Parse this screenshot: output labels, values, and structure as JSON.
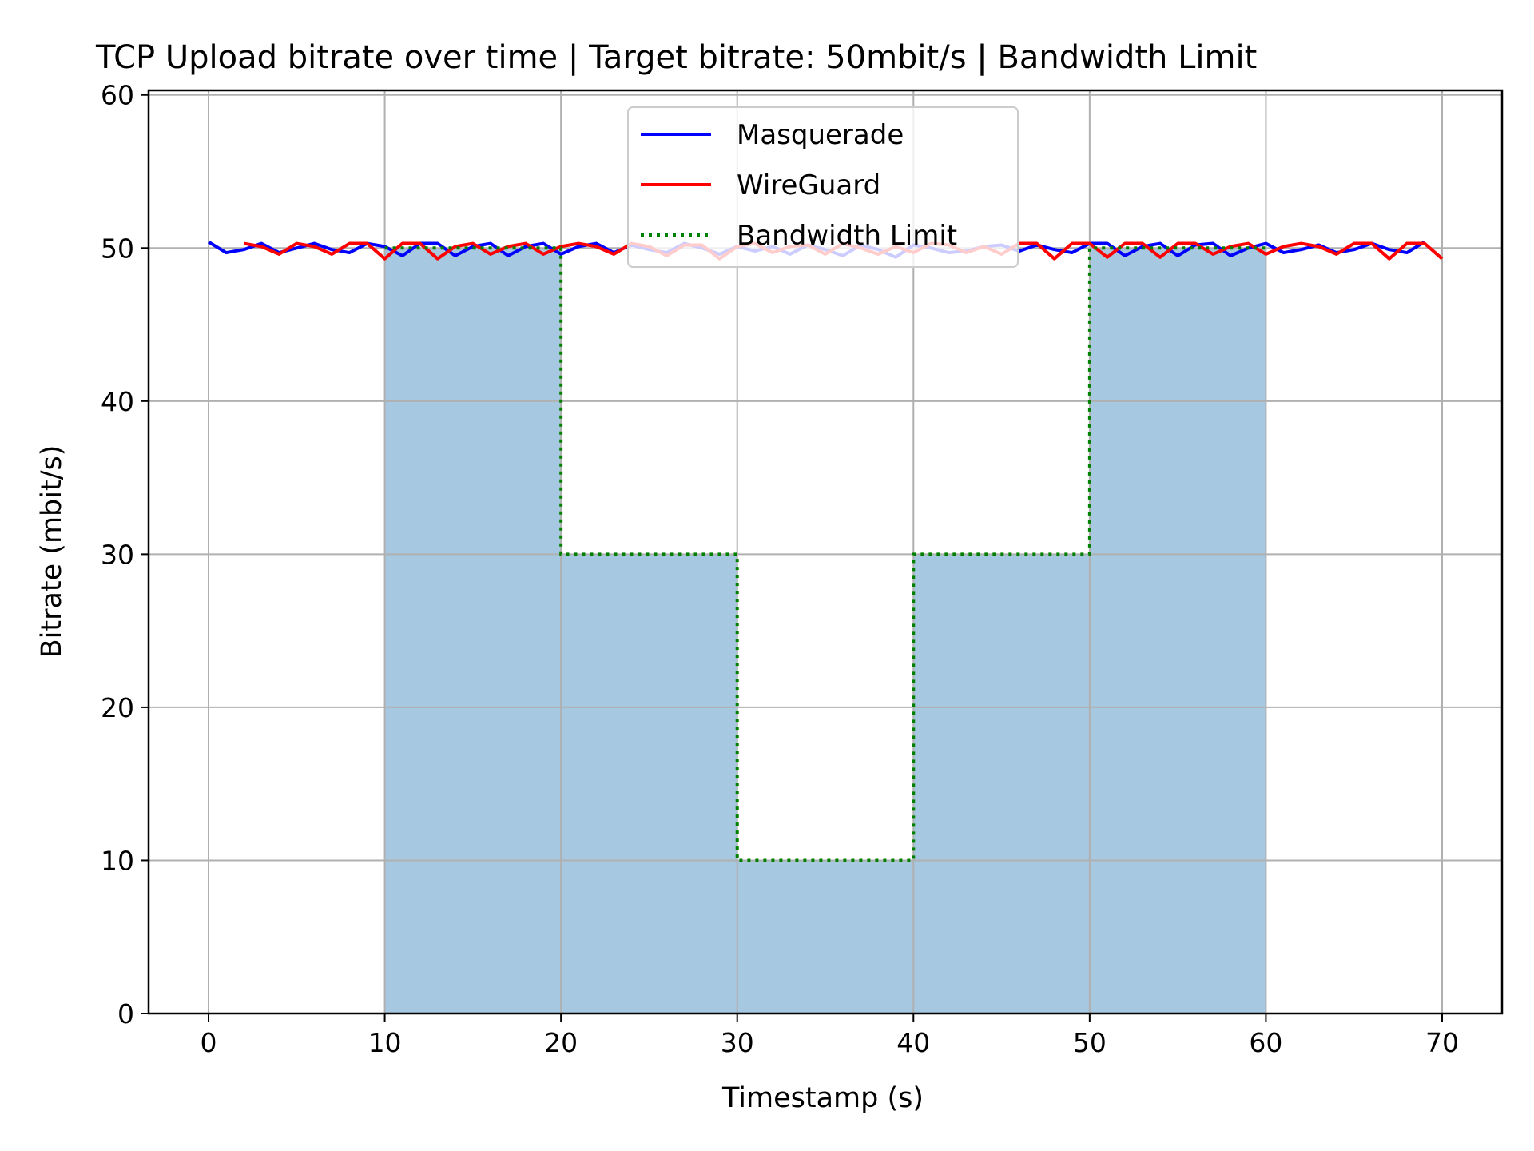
{
  "chart_data": {
    "type": "line",
    "title": "TCP Upload bitrate over time | Target bitrate: 50mbit/s | Bandwidth Limit",
    "xlabel": "Timestamp (s)",
    "ylabel": "Bitrate (mbit/s)",
    "xlim": [
      -3.4,
      73.4
    ],
    "ylim": [
      0,
      60.3
    ],
    "xticks": [
      0,
      10,
      20,
      30,
      40,
      50,
      60,
      70
    ],
    "yticks": [
      0,
      10,
      20,
      30,
      40,
      50,
      60
    ],
    "grid": true,
    "legend_position": "upper-center",
    "legend": [
      {
        "label": "Masquerade",
        "color": "#0000ff",
        "style": "solid"
      },
      {
        "label": "WireGuard",
        "color": "#ff0000",
        "style": "solid"
      },
      {
        "label": "Bandwidth Limit",
        "color": "#008000",
        "style": "dotted"
      }
    ],
    "series": [
      {
        "name": "Masquerade",
        "color": "#0000ff",
        "style": "solid",
        "x": [
          0,
          1,
          2,
          3,
          4,
          5,
          6,
          7,
          8,
          9,
          10,
          11,
          12,
          13,
          14,
          15,
          16,
          17,
          18,
          19,
          20,
          21,
          22,
          23,
          24,
          25,
          26,
          27,
          28,
          29,
          30,
          31,
          32,
          33,
          34,
          35,
          36,
          37,
          38,
          39,
          40,
          41,
          42,
          43,
          44,
          45,
          46,
          47,
          48,
          49,
          50,
          51,
          52,
          53,
          54,
          55,
          56,
          57,
          58,
          59,
          60,
          61,
          62,
          63,
          64,
          65,
          66,
          67,
          68,
          69
        ],
        "y": [
          50.4,
          49.7,
          49.9,
          50.3,
          49.7,
          50.0,
          50.3,
          49.9,
          49.7,
          50.3,
          50.1,
          49.5,
          50.3,
          50.3,
          49.5,
          50.1,
          50.3,
          49.5,
          50.1,
          50.3,
          49.6,
          50.1,
          50.3,
          49.7,
          50.2,
          49.9,
          49.7,
          50.3,
          50.0,
          49.6,
          50.1,
          49.8,
          50.1,
          49.6,
          50.2,
          49.9,
          49.5,
          50.2,
          49.9,
          49.4,
          50.2,
          50.0,
          49.7,
          49.8,
          50.1,
          50.2,
          49.8,
          50.2,
          49.9,
          49.7,
          50.3,
          50.3,
          49.5,
          50.1,
          50.3,
          49.5,
          50.2,
          50.3,
          49.5,
          50.0,
          50.3,
          49.7,
          49.9,
          50.2,
          49.7,
          49.9,
          50.3,
          49.9,
          49.7,
          50.4
        ]
      },
      {
        "name": "WireGuard",
        "color": "#ff0000",
        "style": "solid",
        "x": [
          2,
          3,
          4,
          5,
          6,
          7,
          8,
          9,
          10,
          11,
          12,
          13,
          14,
          15,
          16,
          17,
          18,
          19,
          20,
          21,
          22,
          23,
          24,
          25,
          26,
          27,
          28,
          29,
          30,
          31,
          32,
          33,
          34,
          35,
          36,
          37,
          38,
          39,
          40,
          41,
          42,
          43,
          44,
          45,
          46,
          47,
          48,
          49,
          50,
          51,
          52,
          53,
          54,
          55,
          56,
          57,
          58,
          59,
          60,
          61,
          62,
          63,
          64,
          65,
          66,
          67,
          68,
          69,
          70
        ],
        "y": [
          50.3,
          50.1,
          49.6,
          50.3,
          50.1,
          49.6,
          50.3,
          50.3,
          49.3,
          50.3,
          50.3,
          49.3,
          50.1,
          50.3,
          49.6,
          50.1,
          50.3,
          49.6,
          50.1,
          50.3,
          50.1,
          49.6,
          50.3,
          50.1,
          49.5,
          50.2,
          50.2,
          49.3,
          50.1,
          50.3,
          49.7,
          50.1,
          50.2,
          49.6,
          50.3,
          50.0,
          49.6,
          50.1,
          49.7,
          50.3,
          50.2,
          49.7,
          50.1,
          49.6,
          50.3,
          50.3,
          49.3,
          50.3,
          50.3,
          49.4,
          50.3,
          50.3,
          49.4,
          50.3,
          50.3,
          49.6,
          50.1,
          50.3,
          49.6,
          50.1,
          50.3,
          50.1,
          49.6,
          50.3,
          50.3,
          49.3,
          50.3,
          50.3,
          49.3
        ]
      },
      {
        "name": "Bandwidth Limit",
        "color": "#008000",
        "style": "dotted",
        "x": [
          10,
          20,
          20,
          30,
          30,
          40,
          40,
          50,
          50,
          60
        ],
        "y": [
          50,
          50,
          30,
          30,
          10,
          10,
          30,
          30,
          50,
          50
        ]
      }
    ],
    "shaded_area": {
      "color": "#a6c8e0",
      "x": [
        10,
        20,
        20,
        30,
        30,
        40,
        40,
        50,
        50,
        60
      ],
      "y": [
        50,
        50,
        30,
        30,
        10,
        10,
        30,
        30,
        50,
        50
      ]
    }
  }
}
